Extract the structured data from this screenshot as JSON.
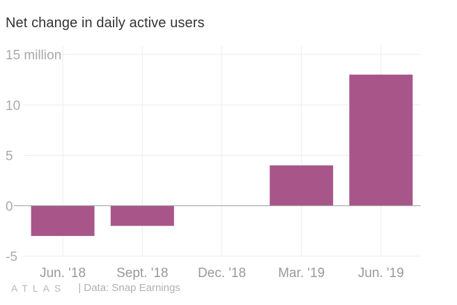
{
  "chart_data": {
    "type": "bar",
    "title": "Net change in daily active users",
    "categories": [
      "Jun. '18",
      "Sept. '18",
      "Dec. '18",
      "Mar. '19",
      "Jun. '19"
    ],
    "values": [
      -3,
      -2,
      0,
      4,
      13
    ],
    "ylim": [
      -5,
      15
    ],
    "yticks": [
      -5,
      0,
      5,
      10,
      15
    ],
    "ytick_labels": [
      "-5",
      "0",
      "5",
      "10",
      "15 million"
    ],
    "xlabel": "",
    "ylabel": "",
    "grid": true,
    "bar_color": "#a8568a"
  },
  "footer": {
    "brand": "ATLAS",
    "source": "| Data: Snap Earnings"
  }
}
